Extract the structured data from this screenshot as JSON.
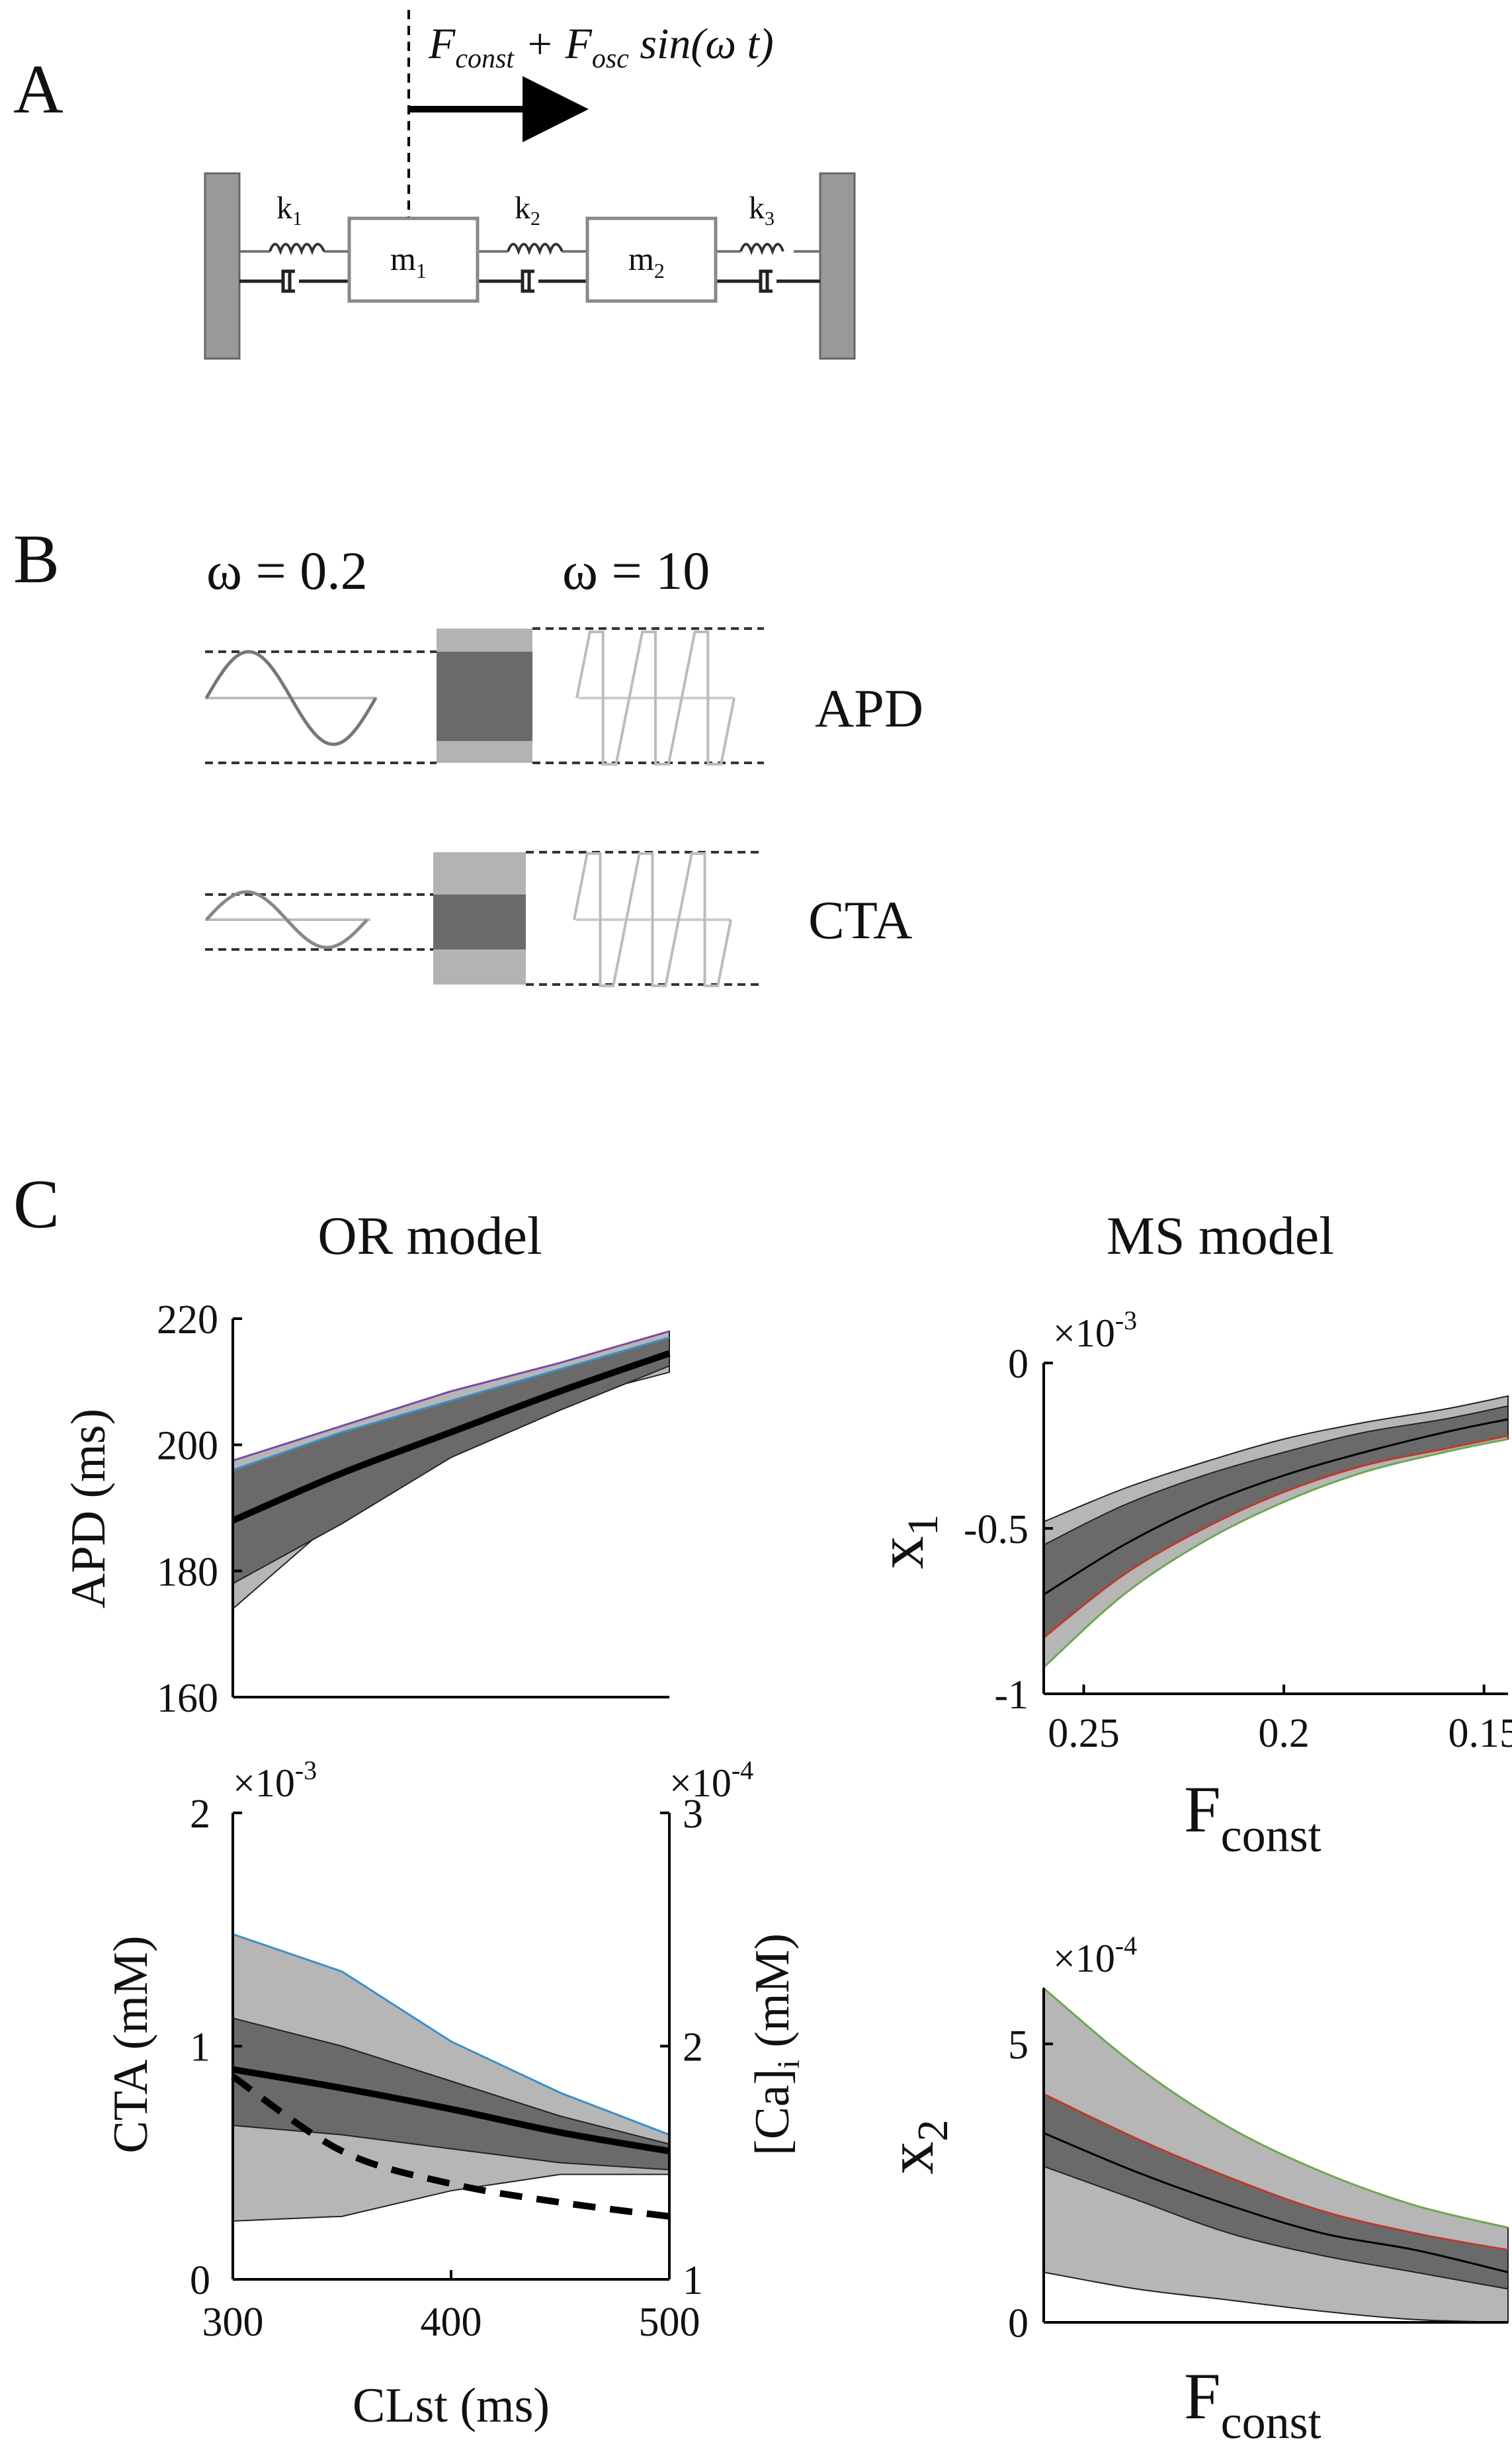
{
  "panel_a": {
    "letter": "A",
    "force_label": {
      "f1": "F",
      "s1": "const",
      "plus": " + F",
      "s2": "osc",
      "tail": " sin(ω t)"
    },
    "k1": {
      "b": "k",
      "s": "1"
    },
    "k2": {
      "b": "k",
      "s": "2"
    },
    "k3": {
      "b": "k",
      "s": "3"
    },
    "m1": {
      "b": "m",
      "s": "1"
    },
    "m2": {
      "b": "m",
      "s": "2"
    }
  },
  "panel_b": {
    "letter": "B",
    "omega_low": "ω = 0.2",
    "omega_high": "ω = 10",
    "apd_label": "APD",
    "cta_label": "CTA"
  },
  "panel_c": {
    "letter": "C",
    "or_title": "OR model",
    "ms_title": "MS model",
    "apd_plot": {
      "ylabel": "APD (ms)",
      "yticks": [
        "160",
        "180",
        "200",
        "220"
      ],
      "chart_data": {
        "type": "area",
        "x": [
          300,
          350,
          400,
          450,
          500
        ],
        "ylim": [
          160,
          220
        ],
        "mean": [
          188,
          195.5,
          202,
          208.5,
          214.5
        ],
        "outer_upper": [
          197.5,
          203,
          208.5,
          213,
          218
        ],
        "outer_lower": [
          174,
          189,
          201,
          207,
          211.5
        ],
        "inner_upper": [
          196,
          202,
          207,
          212,
          217
        ],
        "inner_lower": [
          178,
          187.5,
          198,
          205.5,
          212.5
        ]
      }
    },
    "cta_plot": {
      "ylabel": "CTA (mM)",
      "ylabel_right": {
        "b": "[Ca]",
        "s": "i",
        "tail": " (mM)"
      },
      "multiplier_left": {
        "b": "×10",
        "e": "-3"
      },
      "multiplier_right": {
        "b": "×10",
        "e": "-4"
      },
      "yticks": [
        "0",
        "1",
        "2"
      ],
      "yticks_right": [
        "1",
        "2",
        "3"
      ],
      "xticks": [
        "300",
        "400",
        "500"
      ],
      "xlabel": "CLst (ms)",
      "chart_data": {
        "type": "area",
        "x": [
          300,
          350,
          400,
          450,
          500
        ],
        "ylim": [
          0,
          2
        ],
        "ylim_right": [
          1,
          3
        ],
        "mean": [
          0.9,
          0.82,
          0.73,
          0.63,
          0.55
        ],
        "outer_upper": [
          1.48,
          1.32,
          1.02,
          0.8,
          0.62
        ],
        "outer_lower": [
          0.25,
          0.27,
          0.38,
          0.45,
          0.45
        ],
        "inner_upper": [
          1.12,
          1.0,
          0.85,
          0.7,
          0.58
        ],
        "inner_lower": [
          0.66,
          0.62,
          0.56,
          0.5,
          0.47
        ],
        "dashed_ca": [
          1.87,
          1.55,
          1.41,
          1.33,
          1.27
        ]
      }
    },
    "x1_plot": {
      "ylabel": {
        "b": "x",
        "s": "1"
      },
      "multiplier": {
        "b": "×10",
        "e": "-3"
      },
      "yticks": [
        "-1",
        "-0.5",
        "0"
      ],
      "xticks": [
        "0.25",
        "0.2",
        "0.15"
      ],
      "xlabel": {
        "b": "F",
        "s": "const"
      },
      "chart_data": {
        "type": "area",
        "x": [
          0.26,
          0.24,
          0.22,
          0.2,
          0.18,
          0.16,
          0.144
        ],
        "xlim": [
          0.26,
          0.144
        ],
        "ylim": [
          -1,
          0
        ],
        "outer_upper": [
          -0.48,
          -0.38,
          -0.3,
          -0.23,
          -0.18,
          -0.14,
          -0.1
        ],
        "outer_lower": [
          -0.92,
          -0.7,
          -0.54,
          -0.42,
          -0.33,
          -0.27,
          -0.23
        ],
        "inner_upper": [
          -0.55,
          -0.43,
          -0.34,
          -0.27,
          -0.21,
          -0.17,
          -0.13
        ],
        "inner_lower": [
          -0.83,
          -0.64,
          -0.5,
          -0.39,
          -0.31,
          -0.26,
          -0.22
        ],
        "mean": [
          -0.7,
          -0.55,
          -0.43,
          -0.34,
          -0.27,
          -0.21,
          -0.17
        ]
      }
    },
    "x2_plot": {
      "ylabel": {
        "b": "x",
        "s": "2"
      },
      "multiplier": {
        "b": "×10",
        "e": "-4"
      },
      "yticks": [
        "0",
        "5"
      ],
      "xlabel": {
        "b": "F",
        "s": "const"
      },
      "chart_data": {
        "type": "area",
        "x": [
          0,
          0.2,
          0.4,
          0.6,
          0.8,
          1.0
        ],
        "ylim": [
          0,
          6
        ],
        "outer_upper": [
          6,
          4.6,
          3.5,
          2.7,
          2.1,
          1.7
        ],
        "outer_lower": [
          0.9,
          0.6,
          0.4,
          0.2,
          0.05,
          0
        ],
        "inner_upper": [
          4.1,
          3.3,
          2.6,
          2.0,
          1.6,
          1.3
        ],
        "inner_lower": [
          2.8,
          2.2,
          1.6,
          1.2,
          0.9,
          0.6
        ],
        "mean": [
          3.4,
          2.7,
          2.1,
          1.6,
          1.3,
          0.9
        ]
      }
    }
  },
  "colors": {
    "outer_band": "#b6b6b6",
    "inner_band": "#6a6a6a",
    "wall": "#999999",
    "apd_top_line": "#7a4aa0",
    "apd_edge_line": "#3a8fc8",
    "cta_edge_line": "#3a8fc8",
    "x_red_line": "#c0392b",
    "x_green_line": "#6aa84f"
  }
}
